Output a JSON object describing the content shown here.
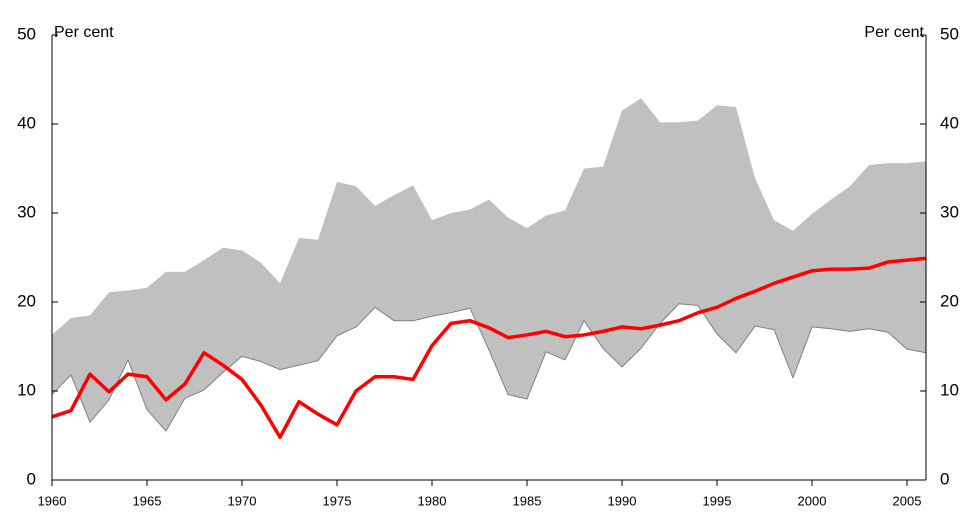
{
  "chart_data": {
    "type": "line",
    "ylabel": "Per cent",
    "y2label": "Per cent",
    "x": [
      1960,
      1961,
      1962,
      1963,
      1964,
      1965,
      1966,
      1967,
      1968,
      1969,
      1970,
      1971,
      1972,
      1973,
      1974,
      1975,
      1976,
      1977,
      1978,
      1979,
      1980,
      1981,
      1982,
      1983,
      1984,
      1985,
      1986,
      1987,
      1988,
      1989,
      1990,
      1991,
      1992,
      1993,
      1994,
      1995,
      1996,
      1997,
      1998,
      1999,
      2000,
      2001,
      2002,
      2003,
      2004,
      2005,
      2006
    ],
    "xlim": [
      1960,
      2006
    ],
    "xticks": [
      1960,
      1965,
      1970,
      1975,
      1980,
      1985,
      1990,
      1995,
      2000,
      2005
    ],
    "ylim": [
      0,
      50
    ],
    "yticks": [
      0,
      10,
      20,
      30,
      40,
      50
    ],
    "y2lim": [
      0,
      50
    ],
    "y2ticks": [
      0,
      10,
      20,
      30,
      40,
      50
    ],
    "band": {
      "color": "#c0c0c0",
      "edge_color": "#808080",
      "upper": [
        16.3,
        18.2,
        18.5,
        21.1,
        21.3,
        21.6,
        23.4,
        23.4,
        24.7,
        26.1,
        25.8,
        24.4,
        22.1,
        27.2,
        27.0,
        33.5,
        33.0,
        30.8,
        32.0,
        33.1,
        29.2,
        30.0,
        30.4,
        31.5,
        29.5,
        28.3,
        29.7,
        30.3,
        35.0,
        35.2,
        41.5,
        42.9,
        40.2,
        40.2,
        40.4,
        42.1,
        41.9,
        33.9,
        29.2,
        28.0,
        29.9,
        31.5,
        33.0,
        35.4,
        35.6,
        35.6,
        35.8
      ],
      "lower": [
        9.6,
        11.8,
        6.5,
        9.0,
        13.5,
        7.9,
        5.5,
        9.2,
        10.1,
        12.1,
        13.9,
        13.3,
        12.4,
        12.9,
        13.4,
        16.2,
        17.2,
        19.4,
        17.9,
        17.9,
        18.4,
        18.8,
        19.3,
        14.6,
        9.6,
        9.1,
        14.4,
        13.5,
        17.9,
        14.8,
        12.7,
        14.8,
        17.6,
        19.8,
        19.6,
        16.4,
        14.3,
        17.3,
        16.9,
        11.5,
        17.2,
        17.0,
        16.7,
        17.0,
        16.6,
        14.7,
        14.3
      ]
    },
    "line": {
      "color": "#ff0000",
      "values": [
        7.1,
        7.8,
        11.9,
        9.9,
        11.9,
        11.6,
        9.0,
        10.8,
        14.3,
        12.9,
        11.3,
        8.4,
        4.8,
        8.8,
        7.4,
        6.2,
        10.0,
        11.6,
        11.6,
        11.3,
        15.1,
        17.6,
        17.9,
        17.1,
        16.0,
        16.3,
        16.7,
        16.1,
        16.3,
        16.7,
        17.2,
        17.0,
        17.4,
        17.9,
        18.8,
        19.4,
        20.4,
        21.2,
        22.1,
        22.8,
        23.5,
        23.7,
        23.7,
        23.8,
        24.5,
        24.7,
        24.9
      ]
    }
  }
}
